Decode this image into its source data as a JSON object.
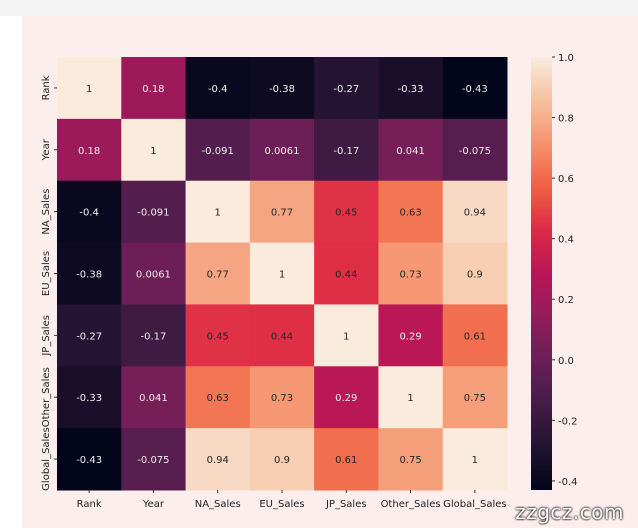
{
  "chart_data": {
    "type": "heatmap",
    "title": "",
    "labels": [
      "Rank",
      "Year",
      "NA_Sales",
      "EU_Sales",
      "JP_Sales",
      "Other_Sales",
      "Global_Sales"
    ],
    "values": [
      [
        1,
        0.18,
        -0.4,
        -0.38,
        -0.27,
        -0.33,
        -0.43
      ],
      [
        0.18,
        1,
        -0.091,
        0.0061,
        -0.17,
        0.041,
        -0.075
      ],
      [
        -0.4,
        -0.091,
        1,
        0.77,
        0.45,
        0.63,
        0.94
      ],
      [
        -0.38,
        0.0061,
        0.77,
        1,
        0.44,
        0.73,
        0.9
      ],
      [
        -0.27,
        -0.17,
        0.45,
        0.44,
        1,
        0.29,
        0.61
      ],
      [
        -0.33,
        0.041,
        0.63,
        0.73,
        0.29,
        1,
        0.75
      ],
      [
        -0.43,
        -0.075,
        0.94,
        0.9,
        0.61,
        0.75,
        1
      ]
    ],
    "colormap": "rocket",
    "vmin": -0.43,
    "vmax": 1.0,
    "colorbar_ticks": [
      "1.0",
      "0.8",
      "0.6",
      "0.4",
      "0.2",
      "0.0",
      "-0.2",
      "-0.4"
    ],
    "colorbar_tick_values": [
      1.0,
      0.8,
      0.6,
      0.4,
      0.2,
      0.0,
      -0.2,
      -0.4
    ]
  },
  "watermark": "zzgcz.com"
}
